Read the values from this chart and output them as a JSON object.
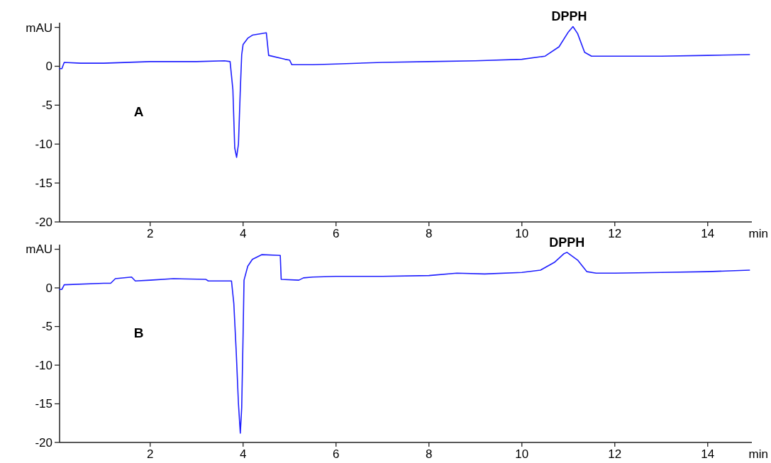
{
  "chart_data": [
    {
      "type": "line",
      "xlabel": "min",
      "annotations": [
        "A",
        {
          "text": "DPPH",
          "x": 11.02,
          "y": 5.1
        }
      ],
      "xlim": [
        0.05,
        14.95
      ],
      "ylim": [
        -20,
        5.6
      ],
      "xticks": [
        2,
        4,
        6,
        8,
        10,
        12,
        14
      ],
      "yticks": [
        -20,
        -15,
        -10,
        -5,
        0,
        {
          "value": 5,
          "label": "mAU"
        }
      ],
      "grid": false,
      "series": [
        {
          "color": "#1f1fff",
          "x": [
            0.05,
            0.1,
            0.15,
            0.5,
            1,
            2,
            3,
            3.6,
            3.72,
            3.78,
            3.82,
            3.86,
            3.9,
            3.94,
            3.97,
            4.0,
            4.1,
            4.2,
            4.5,
            4.55,
            4.9,
            5.0,
            5.05,
            5.5,
            6,
            7,
            8,
            9,
            10,
            10.5,
            10.8,
            11.0,
            11.1,
            11.2,
            11.35,
            11.5,
            12,
            13,
            14,
            14.9
          ],
          "values": [
            -0.3,
            -0.3,
            0.5,
            0.4,
            0.4,
            0.6,
            0.6,
            0.7,
            0.6,
            -3,
            -10.5,
            -11.7,
            -10,
            -3,
            1.5,
            2.8,
            3.6,
            4.0,
            4.3,
            1.4,
            0.9,
            0.8,
            0.2,
            0.2,
            0.3,
            0.5,
            0.6,
            0.7,
            0.9,
            1.3,
            2.5,
            4.4,
            5.1,
            4.2,
            1.8,
            1.3,
            1.3,
            1.3,
            1.4,
            1.5
          ]
        }
      ]
    },
    {
      "type": "line",
      "xlabel": "min",
      "annotations": [
        "B",
        {
          "text": "DPPH",
          "x": 10.97,
          "y": 4.6
        }
      ],
      "xlim": [
        0.05,
        14.95
      ],
      "ylim": [
        -20,
        5.6
      ],
      "xticks": [
        2,
        4,
        6,
        8,
        10,
        12,
        14
      ],
      "yticks": [
        -20,
        -15,
        -10,
        -5,
        0,
        {
          "value": 5,
          "label": "mAU"
        }
      ],
      "grid": false,
      "series": [
        {
          "color": "#1f1fff",
          "x": [
            0.05,
            0.1,
            0.15,
            1.0,
            1.15,
            1.25,
            1.6,
            1.68,
            2,
            2.5,
            3.2,
            3.25,
            3.75,
            3.8,
            3.85,
            3.9,
            3.94,
            3.97,
            4.0,
            4.02,
            4.1,
            4.2,
            4.4,
            4.8,
            4.82,
            5.2,
            5.3,
            5.5,
            6,
            7,
            8,
            8.6,
            9.2,
            10,
            10.4,
            10.7,
            10.9,
            10.97,
            11.2,
            11.4,
            11.6,
            12,
            13,
            14,
            14.9
          ],
          "values": [
            -0.2,
            -0.2,
            0.4,
            0.6,
            0.6,
            1.2,
            1.4,
            0.9,
            1.0,
            1.2,
            1.1,
            0.9,
            0.9,
            -2,
            -8,
            -15,
            -18.8,
            -15.5,
            -6,
            1,
            2.8,
            3.7,
            4.3,
            4.2,
            1.1,
            1.0,
            1.3,
            1.4,
            1.5,
            1.5,
            1.6,
            1.9,
            1.8,
            2.0,
            2.3,
            3.3,
            4.4,
            4.6,
            3.6,
            2.1,
            1.9,
            1.9,
            2.0,
            2.1,
            2.3
          ]
        }
      ]
    }
  ]
}
